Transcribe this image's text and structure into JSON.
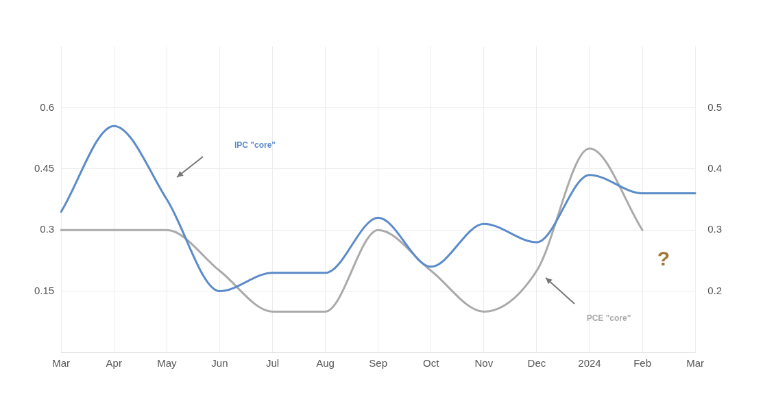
{
  "chart_data": {
    "type": "line",
    "categories": [
      "Mar",
      "Apr",
      "May",
      "Jun",
      "Jul",
      "Aug",
      "Sep",
      "Oct",
      "Nov",
      "Dec",
      "2024",
      "Feb",
      "Mar"
    ],
    "series": [
      {
        "name": "IPC \"core\"",
        "color": "#5b8bc9",
        "axis": "y2",
        "values": [
          0.33,
          0.47,
          0.35,
          0.2,
          0.23,
          0.23,
          0.32,
          0.24,
          0.31,
          0.28,
          0.39,
          0.36,
          0.36
        ]
      },
      {
        "name": "PCE \"core\"",
        "color": "#aaaaaa",
        "values": [
          0.3,
          0.3,
          0.3,
          0.2,
          0.1,
          0.1,
          0.3,
          0.2,
          0.1,
          0.2,
          0.5,
          0.3,
          null
        ]
      }
    ],
    "ylim": [
      0,
      0.75
    ],
    "yticks": [
      0.15,
      0.3,
      0.45,
      0.6
    ],
    "y2lim": [
      0.1,
      0.6
    ],
    "y2ticks": [
      0.2,
      0.3,
      0.4,
      0.5
    ],
    "annotations": [
      "?"
    ],
    "grid": true,
    "legend": false,
    "marker": "none",
    "line_style": "solid"
  }
}
